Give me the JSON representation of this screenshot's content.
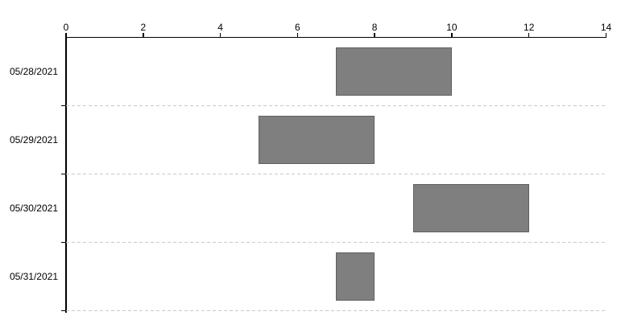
{
  "chart_data": {
    "type": "bar",
    "orientation": "horizontal",
    "variant": "range-gantt",
    "title": "",
    "xlabel": "",
    "ylabel": "",
    "x_axis_position": "top",
    "xlim": [
      0,
      14
    ],
    "x_ticks": [
      "0",
      "2",
      "4",
      "6",
      "8",
      "10",
      "12",
      "14"
    ],
    "x_tick_values": [
      0,
      2,
      4,
      6,
      8,
      10,
      12,
      14
    ],
    "categories": [
      "05/28/2021",
      "05/29/2021",
      "05/30/2021",
      "05/31/2021"
    ],
    "series": [
      {
        "name": "range",
        "values": [
          {
            "category": "05/28/2021",
            "start": 7,
            "end": 10
          },
          {
            "category": "05/29/2021",
            "start": 5,
            "end": 8
          },
          {
            "category": "05/30/2021",
            "start": 9,
            "end": 12
          },
          {
            "category": "05/31/2021",
            "start": 7,
            "end": 8
          }
        ]
      }
    ],
    "grid": "dashed horizontal lines at category boundaries",
    "legend": "none",
    "colors": {
      "bar_fill": "#7f7f7f",
      "bar_border": "#5f5f5f",
      "axis": "#000000",
      "gridline": "#c9c9c9",
      "text": "#000000",
      "background": "#ffffff"
    }
  }
}
